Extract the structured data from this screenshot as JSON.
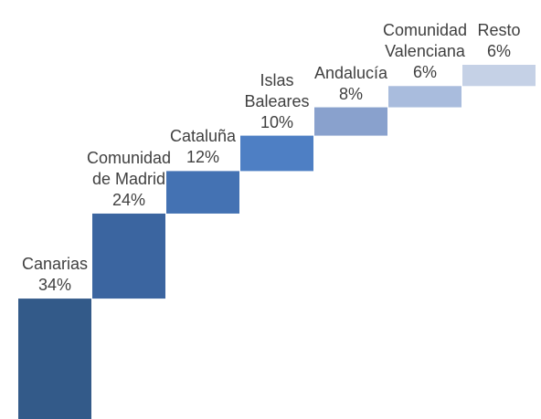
{
  "chart_data": {
    "type": "waterfall",
    "categories": [
      "Canarias",
      "Comunidad\nde Madrid",
      "Cataluña",
      "Islas\nBaleares",
      "Andalucía",
      "Comunidad\nValenciana",
      "Resto"
    ],
    "values": [
      34,
      24,
      12,
      10,
      8,
      6,
      6
    ],
    "value_labels": [
      "34%",
      "24%",
      "12%",
      "10%",
      "8%",
      "6%",
      "6%"
    ],
    "colors": [
      "#335a89",
      "#3b65a0",
      "#4472b3",
      "#4e7fc4",
      "#89a1cd",
      "#a9bcdd",
      "#c5d1e6"
    ]
  }
}
